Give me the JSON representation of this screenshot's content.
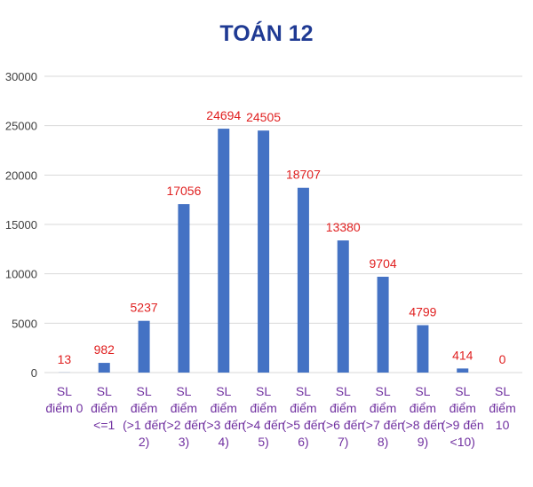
{
  "chart_data": {
    "type": "bar",
    "title": "TOÁN 12",
    "xlabel": "",
    "ylabel": "",
    "ylim": [
      0,
      30000
    ],
    "yticks": [
      0,
      5000,
      10000,
      15000,
      20000,
      25000,
      30000
    ],
    "grid": true,
    "legend": "none",
    "categories": [
      [
        "SL",
        "điểm 0"
      ],
      [
        "SL",
        "điểm",
        "<=1"
      ],
      [
        "SL",
        "điểm",
        "(>1 đến",
        "2)"
      ],
      [
        "SL",
        "điểm",
        "(>2 đến",
        "3)"
      ],
      [
        "SL",
        "điểm",
        "(>3 đến",
        "4)"
      ],
      [
        "SL",
        "điểm",
        "(>4 đến",
        "5)"
      ],
      [
        "SL",
        "điểm",
        "(>5 đến",
        "6)"
      ],
      [
        "SL",
        "điểm",
        "(>6 đến",
        "7)"
      ],
      [
        "SL",
        "điểm",
        "(>7 đến",
        "8)"
      ],
      [
        "SL",
        "điểm",
        "(>8 đến",
        "9)"
      ],
      [
        "SL",
        "điểm",
        "(>9 đến",
        "<10)"
      ],
      [
        "SL",
        "điểm",
        "10"
      ]
    ],
    "values": [
      13,
      982,
      5237,
      17056,
      24694,
      24505,
      18707,
      13380,
      9704,
      4799,
      414,
      0
    ],
    "data_labels": [
      "13",
      "982",
      "5237",
      "17056",
      "24694",
      "24505",
      "18707",
      "13380",
      "9704",
      "4799",
      "414",
      "0"
    ],
    "colors": {
      "bar": "#4472C4",
      "data_label": "#E02020",
      "title": "#1F3A93",
      "category_label": "#7030A0",
      "tick_label": "#404040",
      "grid": "#D9D9D9"
    }
  }
}
